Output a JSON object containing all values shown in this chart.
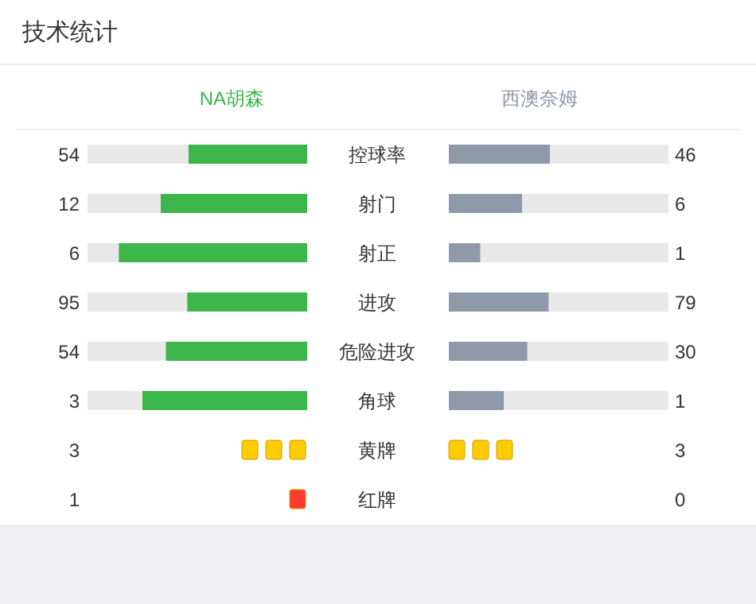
{
  "chart_data": [
    {
      "type": "other",
      "title": "技术统计",
      "categories": [
        "控球率",
        "射门",
        "射正",
        "进攻",
        "危险进攻",
        "角球"
      ],
      "series": [
        {
          "name": "NA胡森",
          "color": "#3cb54a",
          "values": [
            54,
            12,
            6,
            95,
            54,
            3
          ]
        },
        {
          "name": "西澳奈姆",
          "color": "#8e99a9",
          "values": [
            46,
            6,
            1,
            79,
            30,
            1
          ]
        }
      ],
      "data_labels": true
    },
    {
      "type": "other",
      "categories": [
        "黄牌",
        "红牌"
      ],
      "colors": [
        "#ffcc00",
        "#ff3b30"
      ],
      "series": [
        {
          "values": [
            3,
            1
          ]
        },
        {
          "values": [
            3,
            0
          ]
        }
      ],
      "data_labels": true
    }
  ]
}
